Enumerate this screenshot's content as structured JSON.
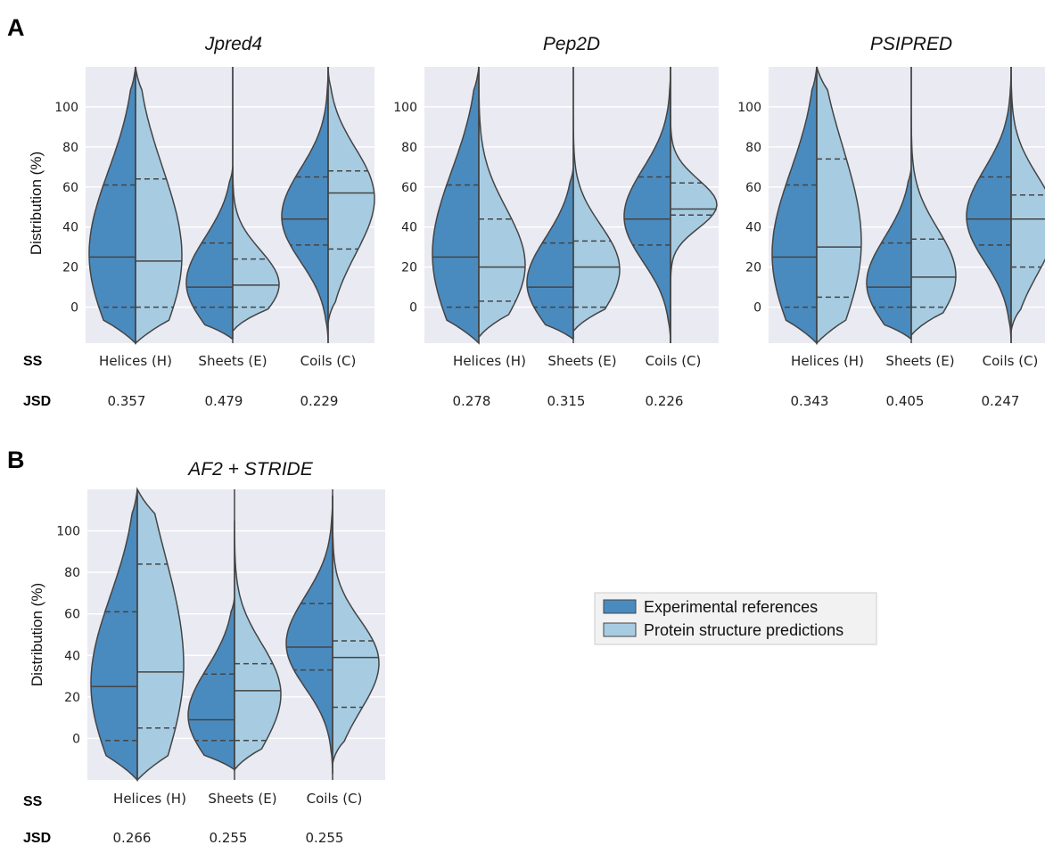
{
  "colors": {
    "experimental": "#4a8bbf",
    "predicted": "#a7cce2",
    "panel_bg": "#eaeaf2",
    "edge": "#444444"
  },
  "panel_letters": [
    "A",
    "B"
  ],
  "row_labels": {
    "ss": "SS",
    "jsd": "JSD"
  },
  "legend": [
    "Experimental references",
    "Protein structure predictions"
  ],
  "chart_data": [
    {
      "type": "violin",
      "title": "Jpred4",
      "ylabel": "Distribution (%)",
      "ylim": [
        -18,
        120
      ],
      "yticks": [
        0,
        20,
        40,
        60,
        80,
        100
      ],
      "categories": [
        "Helices (H)",
        "Sheets (E)",
        "Coils (C)"
      ],
      "jsd": [
        "0.357",
        "0.479",
        "0.229"
      ],
      "series": [
        {
          "name": "Experimental references",
          "quartiles": [
            [
              0,
              25,
              61
            ],
            [
              0,
              10,
              32
            ],
            [
              31,
              44,
              65
            ]
          ],
          "range": [
            [
              -18,
              120
            ],
            [
              -16,
              70
            ],
            [
              -18,
              120
            ]
          ]
        },
        {
          "name": "Protein structure predictions",
          "quartiles": [
            [
              0,
              23,
              64
            ],
            [
              0,
              11,
              24
            ],
            [
              29,
              57,
              68
            ]
          ],
          "range": [
            [
              -18,
              120
            ],
            [
              -12,
              120
            ],
            [
              -8,
              120
            ]
          ]
        }
      ]
    },
    {
      "type": "violin",
      "title": "Pep2D",
      "ylabel": "",
      "ylim": [
        -18,
        120
      ],
      "yticks": [
        0,
        20,
        40,
        60,
        80,
        100
      ],
      "categories": [
        "Helices (H)",
        "Sheets (E)",
        "Coils (C)"
      ],
      "jsd": [
        "0.278",
        "0.315",
        "0.226"
      ],
      "series": [
        {
          "name": "Experimental references",
          "quartiles": [
            [
              0,
              25,
              61
            ],
            [
              0,
              10,
              32
            ],
            [
              31,
              44,
              65
            ]
          ],
          "range": [
            [
              -18,
              120
            ],
            [
              -16,
              70
            ],
            [
              -18,
              120
            ]
          ]
        },
        {
          "name": "Protein structure predictions",
          "quartiles": [
            [
              3,
              20,
              44
            ],
            [
              0,
              20,
              33
            ],
            [
              46,
              49,
              62
            ]
          ],
          "range": [
            [
              -15,
              120
            ],
            [
              -12,
              120
            ],
            [
              -18,
              120
            ]
          ]
        }
      ]
    },
    {
      "type": "violin",
      "title": "PSIPRED",
      "ylabel": "",
      "ylim": [
        -18,
        120
      ],
      "yticks": [
        0,
        20,
        40,
        60,
        80,
        100
      ],
      "categories": [
        "Helices (H)",
        "Sheets (E)",
        "Coils (C)"
      ],
      "jsd": [
        "0.343",
        "0.405",
        "0.247"
      ],
      "series": [
        {
          "name": "Experimental references",
          "quartiles": [
            [
              0,
              25,
              61
            ],
            [
              0,
              10,
              32
            ],
            [
              31,
              44,
              65
            ]
          ],
          "range": [
            [
              -18,
              120
            ],
            [
              -16,
              70
            ],
            [
              -18,
              120
            ]
          ]
        },
        {
          "name": "Protein structure predictions",
          "quartiles": [
            [
              5,
              30,
              74
            ],
            [
              0,
              15,
              34
            ],
            [
              20,
              44,
              56
            ]
          ],
          "range": [
            [
              -18,
              120
            ],
            [
              -14,
              120
            ],
            [
              -12,
              120
            ]
          ]
        }
      ]
    },
    {
      "type": "violin",
      "title": "AF2 + STRIDE",
      "ylabel": "Distribution (%)",
      "ylim": [
        -20,
        120
      ],
      "yticks": [
        0,
        20,
        40,
        60,
        80,
        100
      ],
      "categories": [
        "Helices (H)",
        "Sheets (E)",
        "Coils (C)"
      ],
      "jsd": [
        "0.266",
        "0.255",
        "0.255"
      ],
      "series": [
        {
          "name": "Experimental references",
          "quartiles": [
            [
              -1,
              25,
              61
            ],
            [
              -1,
              9,
              31
            ],
            [
              33,
              44,
              65
            ]
          ],
          "range": [
            [
              -20,
              120
            ],
            [
              -15,
              68
            ],
            [
              -17,
              117
            ]
          ]
        },
        {
          "name": "Protein structure predictions",
          "quartiles": [
            [
              5,
              32,
              84
            ],
            [
              -1,
              23,
              36
            ],
            [
              15,
              39,
              47
            ]
          ],
          "range": [
            [
              -20,
              120
            ],
            [
              -15,
              105
            ],
            [
              -12,
              117
            ]
          ]
        }
      ]
    }
  ]
}
